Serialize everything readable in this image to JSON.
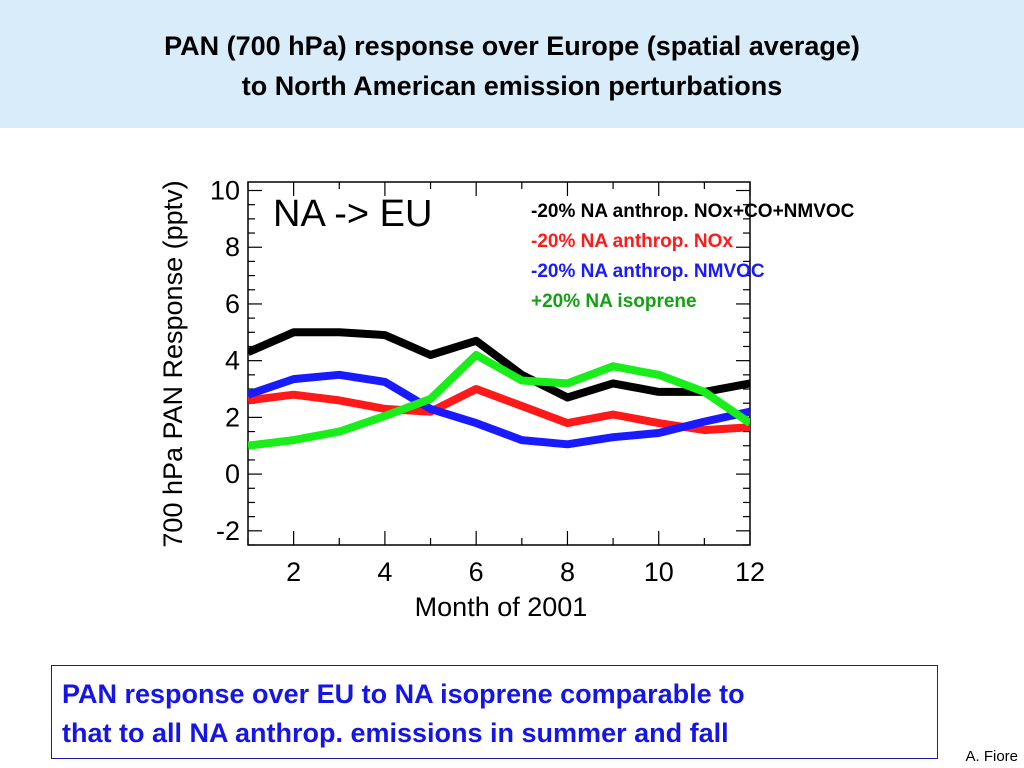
{
  "title": {
    "line1": "PAN (700 hPa) response over Europe (spatial average)",
    "line2": "to North American emission perturbations"
  },
  "colors": {
    "title_band": "#d9ecf9",
    "note_text": "#1515e6",
    "note_border": "#1a1aa8"
  },
  "chart_data": {
    "type": "line",
    "annotation": "NA -> EU",
    "xlabel": "Month of 2001",
    "ylabel": "700 hPa PAN Response (pptv)",
    "xlim": [
      1,
      12
    ],
    "ylim": [
      -2.5,
      10.3
    ],
    "xticks": [
      2,
      4,
      6,
      8,
      10,
      12
    ],
    "yticks": [
      -2,
      0,
      2,
      4,
      6,
      8,
      10
    ],
    "grid": false,
    "legend_position": "top-right",
    "x": [
      1,
      2,
      3,
      4,
      5,
      6,
      7,
      8,
      9,
      10,
      11,
      12
    ],
    "series": [
      {
        "name": "-20% NA anthrop. NOx+CO+NMVOC",
        "color": "#000000",
        "values": [
          4.3,
          5.0,
          5.0,
          4.9,
          4.2,
          4.7,
          3.5,
          2.7,
          3.2,
          2.9,
          2.9,
          3.2
        ]
      },
      {
        "name": "-20% NA anthrop. NOx",
        "color": "#ff1a1a",
        "values": [
          2.6,
          2.8,
          2.6,
          2.3,
          2.2,
          3.0,
          2.4,
          1.8,
          2.1,
          1.8,
          1.55,
          1.65
        ]
      },
      {
        "name": "-20% NA anthrop. NMVOC",
        "color": "#1a1aff",
        "values": [
          2.8,
          3.35,
          3.5,
          3.25,
          2.3,
          1.8,
          1.2,
          1.05,
          1.3,
          1.45,
          1.85,
          2.2
        ]
      },
      {
        "name": "+20% NA isoprene",
        "color": "#1aee1a",
        "values": [
          1.0,
          1.2,
          1.5,
          2.05,
          2.65,
          4.2,
          3.3,
          3.2,
          3.8,
          3.5,
          2.9,
          1.8
        ]
      }
    ]
  },
  "note": {
    "line1": "PAN response over EU to NA isoprene comparable to",
    "line2": "that to all NA anthrop. emissions in summer and fall"
  },
  "credit": "A. Fiore"
}
